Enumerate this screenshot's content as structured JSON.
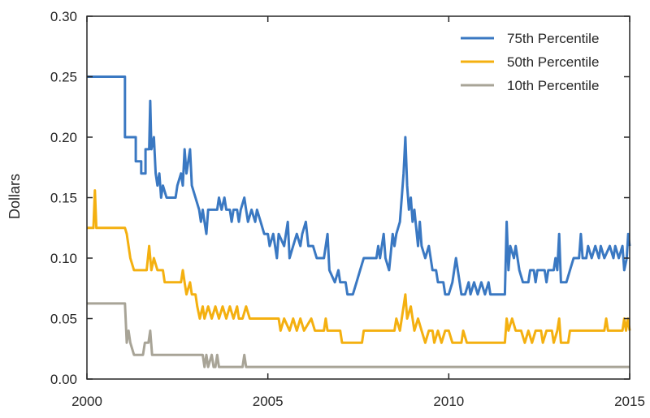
{
  "chart_data": {
    "type": "line",
    "title": "",
    "xlabel": "",
    "ylabel": "Dollars",
    "xlim": [
      2000,
      2015
    ],
    "ylim": [
      0.0,
      0.3
    ],
    "x_ticks": [
      2000,
      2005,
      2010,
      2015
    ],
    "x_tick_labels": [
      "2000",
      "2005",
      "2010",
      "2015"
    ],
    "y_ticks": [
      0.0,
      0.05,
      0.1,
      0.15,
      0.2,
      0.25,
      0.3
    ],
    "y_tick_labels": [
      "0.00",
      "0.05",
      "0.10",
      "0.15",
      "0.20",
      "0.25",
      "0.30"
    ],
    "grid": false,
    "legend_position": "top-right",
    "series": [
      {
        "name": "75th Percentile",
        "color": "#3a78c2",
        "points": [
          [
            2000.0,
            0.25
          ],
          [
            2001.05,
            0.25
          ],
          [
            2001.05,
            0.2
          ],
          [
            2001.35,
            0.2
          ],
          [
            2001.35,
            0.18
          ],
          [
            2001.5,
            0.18
          ],
          [
            2001.5,
            0.17
          ],
          [
            2001.62,
            0.17
          ],
          [
            2001.62,
            0.19
          ],
          [
            2001.72,
            0.19
          ],
          [
            2001.75,
            0.23
          ],
          [
            2001.78,
            0.19
          ],
          [
            2001.85,
            0.2
          ],
          [
            2001.9,
            0.17
          ],
          [
            2001.95,
            0.16
          ],
          [
            2002.0,
            0.17
          ],
          [
            2002.05,
            0.15
          ],
          [
            2002.1,
            0.16
          ],
          [
            2002.2,
            0.15
          ],
          [
            2002.45,
            0.15
          ],
          [
            2002.5,
            0.16
          ],
          [
            2002.6,
            0.17
          ],
          [
            2002.65,
            0.16
          ],
          [
            2002.7,
            0.19
          ],
          [
            2002.75,
            0.17
          ],
          [
            2002.8,
            0.18
          ],
          [
            2002.85,
            0.19
          ],
          [
            2002.9,
            0.16
          ],
          [
            2003.0,
            0.15
          ],
          [
            2003.1,
            0.14
          ],
          [
            2003.15,
            0.13
          ],
          [
            2003.2,
            0.14
          ],
          [
            2003.25,
            0.13
          ],
          [
            2003.3,
            0.12
          ],
          [
            2003.35,
            0.14
          ],
          [
            2003.6,
            0.14
          ],
          [
            2003.65,
            0.15
          ],
          [
            2003.72,
            0.14
          ],
          [
            2003.8,
            0.15
          ],
          [
            2003.85,
            0.14
          ],
          [
            2003.95,
            0.14
          ],
          [
            2004.0,
            0.13
          ],
          [
            2004.05,
            0.14
          ],
          [
            2004.15,
            0.14
          ],
          [
            2004.2,
            0.13
          ],
          [
            2004.25,
            0.14
          ],
          [
            2004.35,
            0.15
          ],
          [
            2004.4,
            0.14
          ],
          [
            2004.45,
            0.13
          ],
          [
            2004.55,
            0.14
          ],
          [
            2004.65,
            0.13
          ],
          [
            2004.7,
            0.14
          ],
          [
            2004.8,
            0.13
          ],
          [
            2004.9,
            0.12
          ],
          [
            2005.0,
            0.12
          ],
          [
            2005.05,
            0.11
          ],
          [
            2005.15,
            0.12
          ],
          [
            2005.25,
            0.1
          ],
          [
            2005.3,
            0.12
          ],
          [
            2005.45,
            0.11
          ],
          [
            2005.5,
            0.12
          ],
          [
            2005.55,
            0.13
          ],
          [
            2005.6,
            0.1
          ],
          [
            2005.7,
            0.11
          ],
          [
            2005.8,
            0.12
          ],
          [
            2005.9,
            0.11
          ],
          [
            2005.95,
            0.12
          ],
          [
            2006.05,
            0.13
          ],
          [
            2006.12,
            0.11
          ],
          [
            2006.25,
            0.11
          ],
          [
            2006.35,
            0.1
          ],
          [
            2006.55,
            0.1
          ],
          [
            2006.65,
            0.12
          ],
          [
            2006.7,
            0.09
          ],
          [
            2006.85,
            0.08
          ],
          [
            2006.95,
            0.09
          ],
          [
            2007.0,
            0.08
          ],
          [
            2007.15,
            0.08
          ],
          [
            2007.2,
            0.07
          ],
          [
            2007.35,
            0.07
          ],
          [
            2007.45,
            0.08
          ],
          [
            2007.55,
            0.09
          ],
          [
            2007.65,
            0.1
          ],
          [
            2007.8,
            0.1
          ],
          [
            2008.0,
            0.1
          ],
          [
            2008.05,
            0.11
          ],
          [
            2008.1,
            0.1
          ],
          [
            2008.2,
            0.12
          ],
          [
            2008.25,
            0.1
          ],
          [
            2008.35,
            0.09
          ],
          [
            2008.45,
            0.12
          ],
          [
            2008.5,
            0.11
          ],
          [
            2008.55,
            0.12
          ],
          [
            2008.65,
            0.13
          ],
          [
            2008.75,
            0.17
          ],
          [
            2008.8,
            0.2
          ],
          [
            2008.85,
            0.16
          ],
          [
            2008.9,
            0.14
          ],
          [
            2008.95,
            0.15
          ],
          [
            2009.0,
            0.13
          ],
          [
            2009.05,
            0.14
          ],
          [
            2009.15,
            0.11
          ],
          [
            2009.2,
            0.13
          ],
          [
            2009.25,
            0.11
          ],
          [
            2009.35,
            0.1
          ],
          [
            2009.45,
            0.11
          ],
          [
            2009.55,
            0.09
          ],
          [
            2009.65,
            0.09
          ],
          [
            2009.7,
            0.08
          ],
          [
            2009.85,
            0.08
          ],
          [
            2009.9,
            0.07
          ],
          [
            2010.0,
            0.07
          ],
          [
            2010.1,
            0.08
          ],
          [
            2010.2,
            0.1
          ],
          [
            2010.3,
            0.08
          ],
          [
            2010.35,
            0.07
          ],
          [
            2010.45,
            0.07
          ],
          [
            2010.55,
            0.08
          ],
          [
            2010.6,
            0.07
          ],
          [
            2010.7,
            0.08
          ],
          [
            2010.8,
            0.07
          ],
          [
            2010.9,
            0.08
          ],
          [
            2011.0,
            0.07
          ],
          [
            2011.1,
            0.08
          ],
          [
            2011.15,
            0.07
          ],
          [
            2011.55,
            0.07
          ],
          [
            2011.6,
            0.13
          ],
          [
            2011.65,
            0.09
          ],
          [
            2011.7,
            0.11
          ],
          [
            2011.8,
            0.1
          ],
          [
            2011.85,
            0.11
          ],
          [
            2011.95,
            0.09
          ],
          [
            2012.05,
            0.08
          ],
          [
            2012.1,
            0.08
          ],
          [
            2012.2,
            0.08
          ],
          [
            2012.25,
            0.09
          ],
          [
            2012.35,
            0.09
          ],
          [
            2012.4,
            0.08
          ],
          [
            2012.45,
            0.09
          ],
          [
            2012.65,
            0.09
          ],
          [
            2012.7,
            0.08
          ],
          [
            2012.75,
            0.09
          ],
          [
            2012.9,
            0.09
          ],
          [
            2012.95,
            0.1
          ],
          [
            2013.0,
            0.09
          ],
          [
            2013.05,
            0.12
          ],
          [
            2013.1,
            0.08
          ],
          [
            2013.15,
            0.08
          ],
          [
            2013.25,
            0.08
          ],
          [
            2013.35,
            0.09
          ],
          [
            2013.45,
            0.1
          ],
          [
            2013.6,
            0.1
          ],
          [
            2013.65,
            0.12
          ],
          [
            2013.7,
            0.1
          ],
          [
            2013.8,
            0.1
          ],
          [
            2013.85,
            0.11
          ],
          [
            2013.95,
            0.1
          ],
          [
            2014.05,
            0.11
          ],
          [
            2014.15,
            0.1
          ],
          [
            2014.2,
            0.11
          ],
          [
            2014.3,
            0.1
          ],
          [
            2014.45,
            0.11
          ],
          [
            2014.55,
            0.1
          ],
          [
            2014.6,
            0.11
          ],
          [
            2014.7,
            0.1
          ],
          [
            2014.8,
            0.11
          ],
          [
            2014.85,
            0.09
          ],
          [
            2014.92,
            0.1
          ],
          [
            2014.96,
            0.12
          ],
          [
            2015.0,
            0.11
          ]
        ]
      },
      {
        "name": "50th Percentile",
        "color": "#f4b010",
        "points": [
          [
            2000.0,
            0.125
          ],
          [
            2000.18,
            0.125
          ],
          [
            2000.22,
            0.156
          ],
          [
            2000.26,
            0.125
          ],
          [
            2001.05,
            0.125
          ],
          [
            2001.1,
            0.12
          ],
          [
            2001.2,
            0.1
          ],
          [
            2001.3,
            0.09
          ],
          [
            2001.65,
            0.09
          ],
          [
            2001.72,
            0.11
          ],
          [
            2001.78,
            0.09
          ],
          [
            2001.85,
            0.1
          ],
          [
            2001.95,
            0.09
          ],
          [
            2002.1,
            0.09
          ],
          [
            2002.15,
            0.08
          ],
          [
            2002.6,
            0.08
          ],
          [
            2002.65,
            0.09
          ],
          [
            2002.7,
            0.08
          ],
          [
            2002.75,
            0.07
          ],
          [
            2002.85,
            0.08
          ],
          [
            2002.9,
            0.07
          ],
          [
            2003.0,
            0.07
          ],
          [
            2003.05,
            0.06
          ],
          [
            2003.12,
            0.05
          ],
          [
            2003.2,
            0.06
          ],
          [
            2003.25,
            0.05
          ],
          [
            2003.35,
            0.06
          ],
          [
            2003.45,
            0.05
          ],
          [
            2003.55,
            0.06
          ],
          [
            2003.65,
            0.05
          ],
          [
            2003.75,
            0.06
          ],
          [
            2003.85,
            0.05
          ],
          [
            2003.95,
            0.06
          ],
          [
            2004.05,
            0.05
          ],
          [
            2004.15,
            0.06
          ],
          [
            2004.2,
            0.05
          ],
          [
            2004.3,
            0.05
          ],
          [
            2004.4,
            0.06
          ],
          [
            2004.5,
            0.05
          ],
          [
            2005.3,
            0.05
          ],
          [
            2005.35,
            0.04
          ],
          [
            2005.45,
            0.05
          ],
          [
            2005.6,
            0.04
          ],
          [
            2005.7,
            0.05
          ],
          [
            2005.8,
            0.04
          ],
          [
            2005.9,
            0.05
          ],
          [
            2006.0,
            0.04
          ],
          [
            2006.2,
            0.05
          ],
          [
            2006.3,
            0.04
          ],
          [
            2006.55,
            0.04
          ],
          [
            2006.6,
            0.05
          ],
          [
            2006.65,
            0.04
          ],
          [
            2007.0,
            0.04
          ],
          [
            2007.05,
            0.03
          ],
          [
            2007.6,
            0.03
          ],
          [
            2007.65,
            0.04
          ],
          [
            2008.5,
            0.04
          ],
          [
            2008.55,
            0.05
          ],
          [
            2008.65,
            0.04
          ],
          [
            2008.75,
            0.06
          ],
          [
            2008.8,
            0.07
          ],
          [
            2008.85,
            0.05
          ],
          [
            2008.95,
            0.06
          ],
          [
            2009.05,
            0.04
          ],
          [
            2009.15,
            0.05
          ],
          [
            2009.25,
            0.04
          ],
          [
            2009.35,
            0.03
          ],
          [
            2009.45,
            0.04
          ],
          [
            2009.55,
            0.04
          ],
          [
            2009.6,
            0.03
          ],
          [
            2009.7,
            0.04
          ],
          [
            2009.8,
            0.03
          ],
          [
            2009.9,
            0.04
          ],
          [
            2010.0,
            0.04
          ],
          [
            2010.1,
            0.03
          ],
          [
            2010.35,
            0.03
          ],
          [
            2010.4,
            0.04
          ],
          [
            2010.5,
            0.03
          ],
          [
            2010.6,
            0.03
          ],
          [
            2011.55,
            0.03
          ],
          [
            2011.6,
            0.05
          ],
          [
            2011.65,
            0.04
          ],
          [
            2011.75,
            0.05
          ],
          [
            2011.85,
            0.04
          ],
          [
            2012.0,
            0.04
          ],
          [
            2012.1,
            0.03
          ],
          [
            2012.2,
            0.04
          ],
          [
            2012.3,
            0.03
          ],
          [
            2012.4,
            0.04
          ],
          [
            2012.55,
            0.04
          ],
          [
            2012.6,
            0.03
          ],
          [
            2012.7,
            0.04
          ],
          [
            2012.85,
            0.04
          ],
          [
            2012.9,
            0.03
          ],
          [
            2013.0,
            0.04
          ],
          [
            2013.05,
            0.05
          ],
          [
            2013.1,
            0.03
          ],
          [
            2013.15,
            0.03
          ],
          [
            2013.3,
            0.03
          ],
          [
            2013.35,
            0.04
          ],
          [
            2013.5,
            0.04
          ],
          [
            2014.3,
            0.04
          ],
          [
            2014.35,
            0.05
          ],
          [
            2014.4,
            0.04
          ],
          [
            2014.8,
            0.04
          ],
          [
            2014.85,
            0.05
          ],
          [
            2014.9,
            0.04
          ],
          [
            2014.95,
            0.05
          ],
          [
            2015.0,
            0.04
          ]
        ]
      },
      {
        "name": "10th Percentile",
        "color": "#a8a497",
        "points": [
          [
            2000.0,
            0.0625
          ],
          [
            2001.05,
            0.0625
          ],
          [
            2001.1,
            0.03
          ],
          [
            2001.15,
            0.04
          ],
          [
            2001.2,
            0.03
          ],
          [
            2001.3,
            0.02
          ],
          [
            2001.55,
            0.02
          ],
          [
            2001.6,
            0.03
          ],
          [
            2001.7,
            0.03
          ],
          [
            2001.75,
            0.04
          ],
          [
            2001.8,
            0.02
          ],
          [
            2003.2,
            0.02
          ],
          [
            2003.25,
            0.01
          ],
          [
            2003.3,
            0.02
          ],
          [
            2003.35,
            0.01
          ],
          [
            2003.45,
            0.02
          ],
          [
            2003.5,
            0.01
          ],
          [
            2003.55,
            0.01
          ],
          [
            2003.6,
            0.02
          ],
          [
            2003.65,
            0.01
          ],
          [
            2004.3,
            0.01
          ],
          [
            2004.35,
            0.02
          ],
          [
            2004.4,
            0.01
          ],
          [
            2015.0,
            0.01
          ]
        ]
      }
    ]
  }
}
